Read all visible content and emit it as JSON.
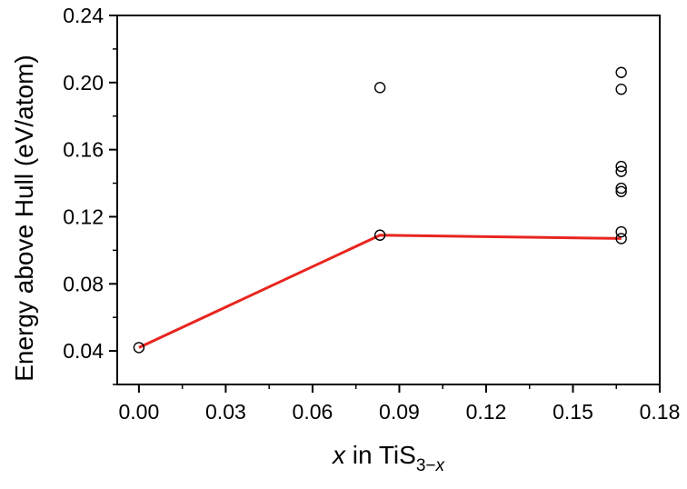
{
  "chart_data": {
    "type": "scatter",
    "title": "",
    "xlabel": {
      "italic": "x",
      "text": " in TiS",
      "sub": "3−",
      "sub_italic": "x"
    },
    "ylabel": "Energy above Hull (eV/atom)",
    "xlim": [
      -0.0075,
      0.18
    ],
    "ylim": [
      0.02,
      0.24
    ],
    "xticks": [
      0.0,
      0.03,
      0.06,
      0.09,
      0.12,
      0.15,
      0.18
    ],
    "xtick_labels": [
      "0.00",
      "0.03",
      "0.06",
      "0.09",
      "0.12",
      "0.15",
      "0.18"
    ],
    "yticks": [
      0.04,
      0.08,
      0.12,
      0.16,
      0.2,
      0.24
    ],
    "ytick_labels": [
      "0.04",
      "0.08",
      "0.12",
      "0.16",
      "0.20",
      "0.24"
    ],
    "grid": false,
    "series": [
      {
        "kind": "scatter",
        "marker": "open-circle",
        "color": "#000000",
        "points": [
          {
            "x": 0.0,
            "y": 0.042
          },
          {
            "x": 0.0833,
            "y": 0.109
          },
          {
            "x": 0.0833,
            "y": 0.197
          },
          {
            "x": 0.1667,
            "y": 0.206
          },
          {
            "x": 0.1667,
            "y": 0.196
          },
          {
            "x": 0.1667,
            "y": 0.15
          },
          {
            "x": 0.1667,
            "y": 0.147
          },
          {
            "x": 0.1667,
            "y": 0.137
          },
          {
            "x": 0.1667,
            "y": 0.135
          },
          {
            "x": 0.1667,
            "y": 0.111
          },
          {
            "x": 0.1667,
            "y": 0.107
          }
        ]
      },
      {
        "kind": "line",
        "color": "#e8251f",
        "points": [
          {
            "x": 0.0,
            "y": 0.042
          },
          {
            "x": 0.0833,
            "y": 0.109
          },
          {
            "x": 0.1667,
            "y": 0.107
          }
        ]
      }
    ]
  }
}
